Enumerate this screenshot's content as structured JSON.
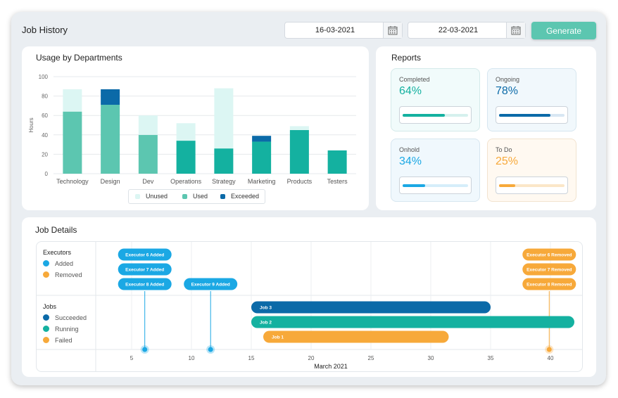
{
  "header": {
    "title": "Job History",
    "start_date": "16-03-2021",
    "end_date": "22-03-2021",
    "generate_label": "Generate"
  },
  "usage": {
    "title": "Usage by Departments",
    "legend": [
      "Unused",
      "Used",
      "Exceeded"
    ]
  },
  "colors": {
    "unused": "#dcf6f3",
    "used_light": "#5cc6b0",
    "used_dark": "#14b1a0",
    "exceeded": "#0b6aa8"
  },
  "chart_data": {
    "type": "bar",
    "stacked": true,
    "title": "Usage by Departments",
    "xlabel": "",
    "ylabel": "Hours",
    "ylim": [
      0,
      100
    ],
    "yticks": [
      0,
      20,
      40,
      60,
      80,
      100
    ],
    "categories": [
      "Technology",
      "Design",
      "Dev",
      "Operations",
      "Strategy",
      "Marketing",
      "Products",
      "Testers"
    ],
    "series": [
      {
        "name": "Used",
        "values": [
          64,
          71,
          40,
          34,
          26,
          33,
          45,
          24
        ]
      },
      {
        "name": "Unused",
        "values": [
          23,
          0,
          20,
          18,
          62,
          0,
          4,
          0
        ]
      },
      {
        "name": "Exceeded",
        "values": [
          0,
          16,
          0,
          0,
          0,
          6,
          0,
          0
        ]
      }
    ],
    "legend_position": "bottom"
  },
  "reports": {
    "title": "Reports",
    "items": [
      {
        "label": "Completed",
        "value": "64%",
        "pct": 64,
        "color": "#14b1a0",
        "track": "#d6f1ee",
        "bg": "#f1fbfb",
        "border": "#d4eaea"
      },
      {
        "label": "Ongoing",
        "value": "78%",
        "pct": 78,
        "color": "#0b6aa8",
        "track": "#d8e7f3",
        "bg": "#f1f8fc",
        "border": "#d6e6f0"
      },
      {
        "label": "Onhold",
        "value": "34%",
        "pct": 34,
        "color": "#1ba8e4",
        "track": "#d5eefa",
        "bg": "#f0f8fd",
        "border": "#d6e6f0"
      },
      {
        "label": "To Do",
        "value": "25%",
        "pct": 25,
        "color": "#f7a93a",
        "track": "#fbe7c8",
        "bg": "#fff9f1",
        "border": "#f2e3cf"
      }
    ]
  },
  "job_details": {
    "title": "Job Details",
    "executors_label": "Executors",
    "executor_legend": [
      {
        "label": "Added",
        "color": "#1ba8e4"
      },
      {
        "label": "Removed",
        "color": "#f7a93a"
      }
    ],
    "jobs_label": "Jobs",
    "jobs_legend": [
      {
        "label": "Succeeded",
        "color": "#0b6aa8"
      },
      {
        "label": "Running",
        "color": "#14b1a0"
      },
      {
        "label": "Failed",
        "color": "#f7a93a"
      }
    ],
    "axis_label": "March 2021",
    "axis_ticks": [
      5,
      10,
      15,
      20,
      25,
      30,
      35,
      40
    ],
    "axis_min": 2,
    "axis_max": 42,
    "events": [
      {
        "label": "Executor 6 Added",
        "day": 6.1,
        "row": 0,
        "type": "added"
      },
      {
        "label": "Executor 7 Added",
        "day": 6.1,
        "row": 1,
        "type": "added"
      },
      {
        "label": "Executor 8 Added",
        "day": 6.1,
        "row": 2,
        "type": "added"
      },
      {
        "label": "Executor 9 Added",
        "day": 11.6,
        "row": 2,
        "type": "added"
      },
      {
        "label": "Executor 6 Removed",
        "day": 39.9,
        "row": 0,
        "type": "removed"
      },
      {
        "label": "Executor 7 Removed",
        "day": 39.9,
        "row": 1,
        "type": "removed"
      },
      {
        "label": "Executor 8 Removed",
        "day": 39.9,
        "row": 2,
        "type": "removed"
      }
    ],
    "markers": [
      {
        "day": 6.1,
        "type": "added"
      },
      {
        "day": 11.6,
        "type": "added"
      },
      {
        "day": 39.9,
        "type": "removed"
      }
    ],
    "jobs": [
      {
        "label": "Job 3",
        "start": 15.0,
        "end": 35.0,
        "status": "succeeded"
      },
      {
        "label": "Job 2",
        "start": 15.0,
        "end": 42.0,
        "status": "running"
      },
      {
        "label": "Job 1",
        "start": 16.0,
        "end": 31.5,
        "status": "failed"
      }
    ]
  }
}
